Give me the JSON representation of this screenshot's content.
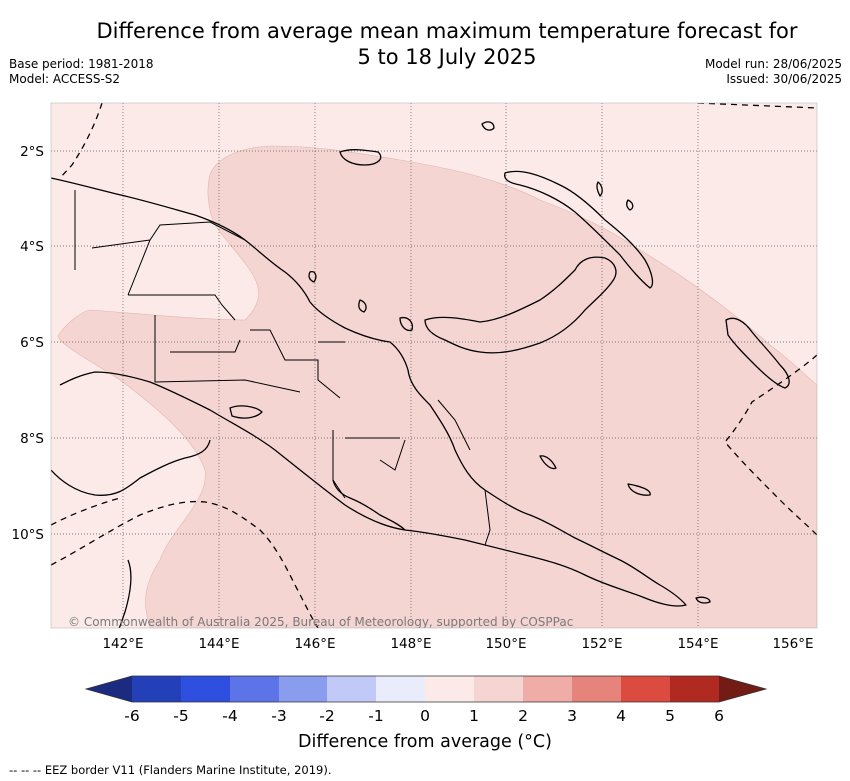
{
  "header": {
    "title_line1": "Difference from average mean maximum temperature forecast for",
    "title_line2": "5 to 18 July 2025",
    "base_period": "Base period: 1981-2018",
    "model": "Model: ACCESS-S2",
    "model_run": "Model run: 28/06/2025",
    "issued": "Issued: 30/06/2025"
  },
  "map": {
    "lon_labels": [
      "142°E",
      "144°E",
      "146°E",
      "148°E",
      "150°E",
      "152°E",
      "154°E",
      "156°E"
    ],
    "lat_labels": [
      "2°S",
      "4°S",
      "6°S",
      "8°S",
      "10°S"
    ],
    "copyright": "© Commonwealth of Australia 2025, Bureau of Meteorology, supported by COSPPac",
    "fill_colors": {
      "zero_to_one": "#fbeae8",
      "one_to_two": "#f5d5d2"
    }
  },
  "colorbar": {
    "ticks": [
      "-6",
      "-5",
      "-4",
      "-3",
      "-2",
      "-1",
      "0",
      "1",
      "2",
      "3",
      "4",
      "5",
      "6"
    ],
    "colors": [
      "#1b2b80",
      "#2440b8",
      "#2e4fe0",
      "#5c74e8",
      "#8a9cee",
      "#c1c9f6",
      "#e8ecfb",
      "#fbeae8",
      "#f5d5d2",
      "#f0aca6",
      "#e6837b",
      "#db4b3f",
      "#b02a22",
      "#731c16"
    ],
    "title": "Difference from average (°C)"
  },
  "footnote": "--  --  -- EEZ border V11 (Flanders Marine Institute, 2019)."
}
